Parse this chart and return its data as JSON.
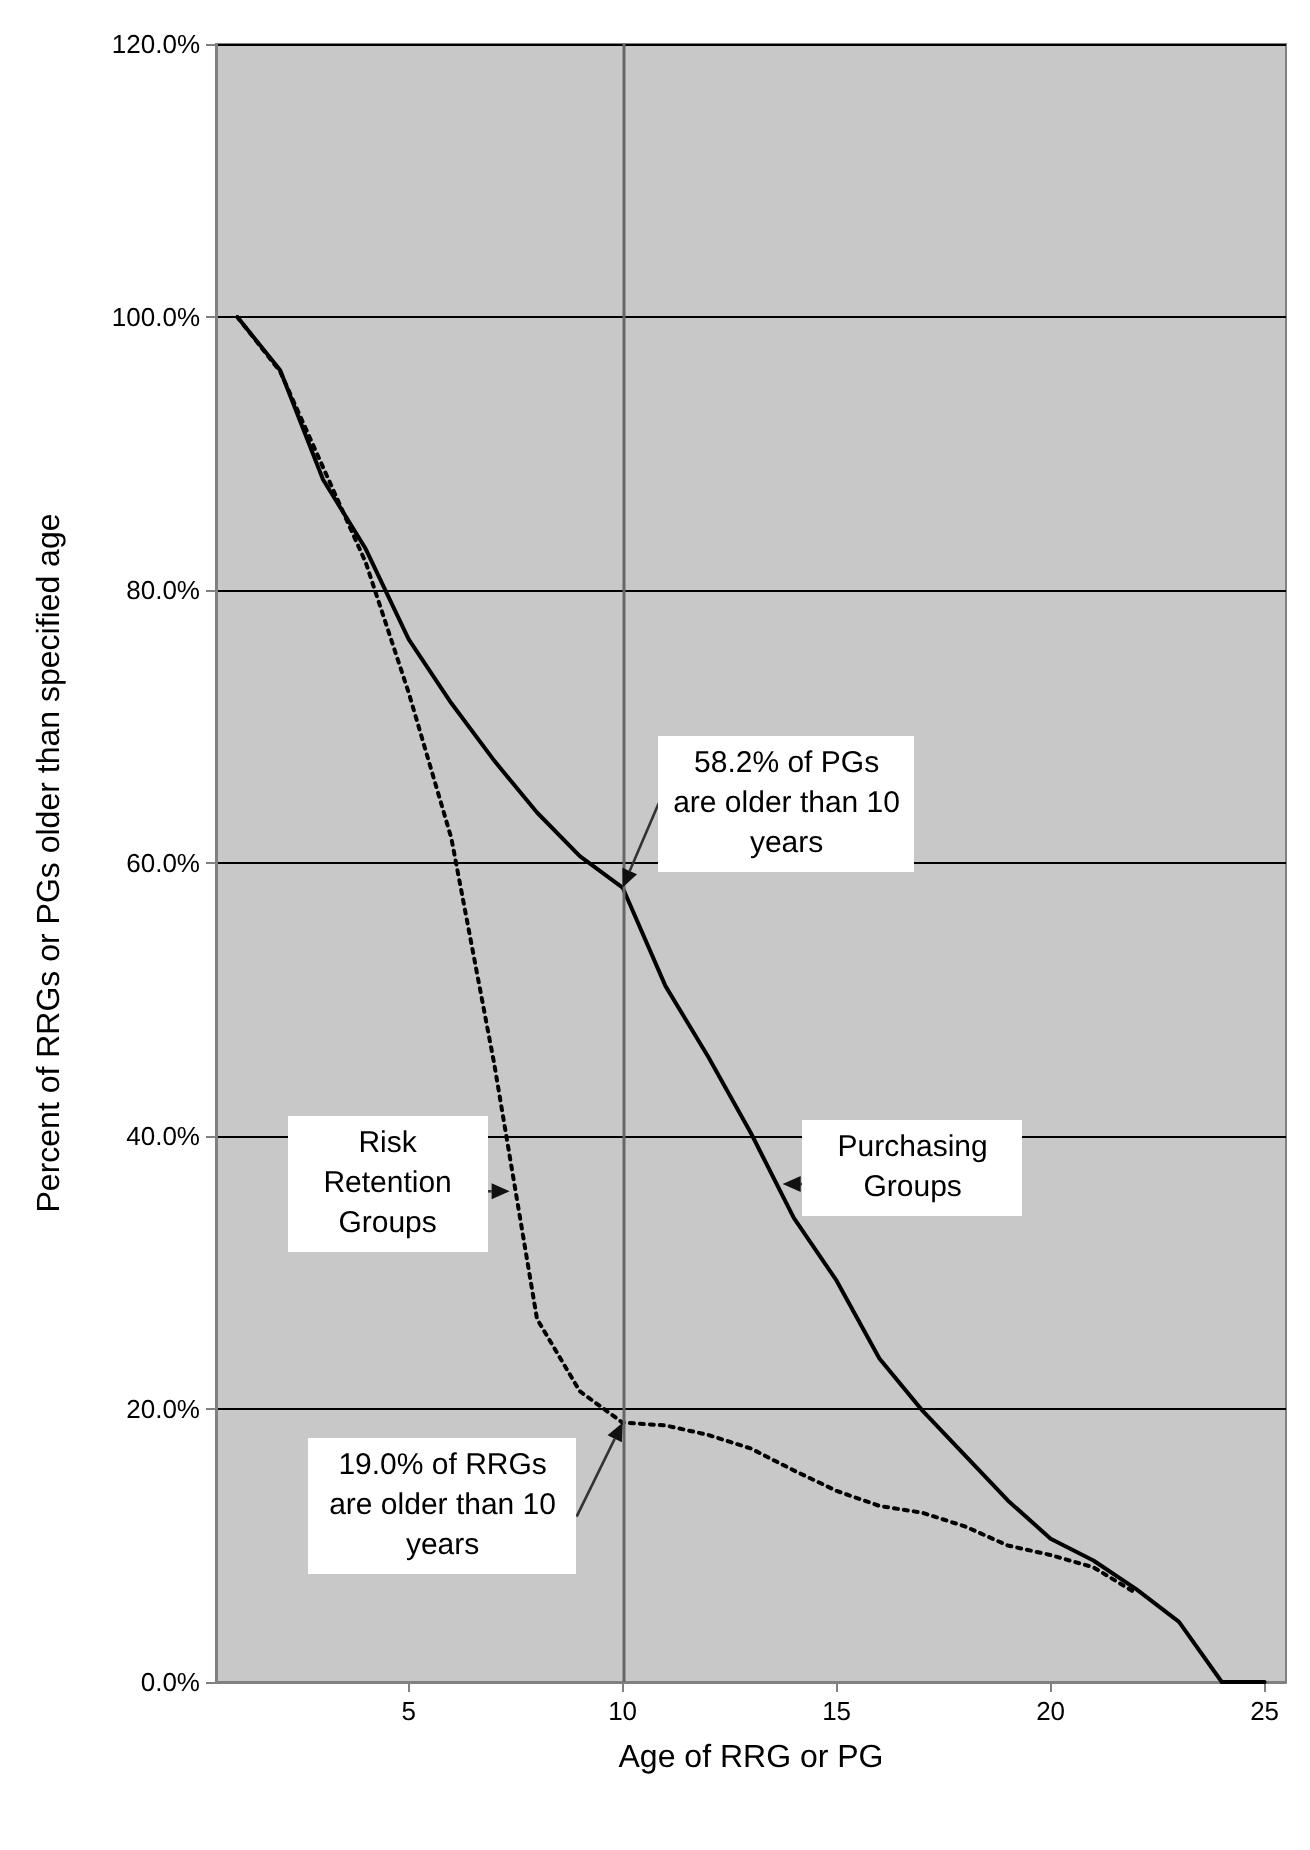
{
  "chart_data": {
    "type": "line",
    "xlabel": "Age of RRG or PG",
    "ylabel": "Percent of RRGs or PGs older than specified age",
    "x": [
      1,
      2,
      3,
      4,
      5,
      6,
      7,
      8,
      9,
      10,
      11,
      12,
      13,
      14,
      15,
      16,
      17,
      18,
      19,
      20,
      21,
      22,
      23,
      24,
      25
    ],
    "series": [
      {
        "name": "Risk Retention Groups",
        "color": "#000000",
        "line_style": "dotted",
        "values": [
          100,
          96,
          89,
          82,
          72.5,
          61.8,
          45.3,
          26.6,
          21.3,
          19.0,
          18.8,
          18.1,
          17.1,
          15.5,
          14.0,
          12.9,
          12.4,
          11.4,
          10.0,
          9.3,
          8.4,
          6.5,
          null,
          null,
          null
        ]
      },
      {
        "name": "Purchasing Groups",
        "color": "#000000",
        "line_style": "solid",
        "values": [
          100,
          96.1,
          88.1,
          83.0,
          76.4,
          71.7,
          67.5,
          63.7,
          60.5,
          58.2,
          51.0,
          45.8,
          40.2,
          34.0,
          29.4,
          23.7,
          19.9,
          16.6,
          13.3,
          10.5,
          8.9,
          6.8,
          4.4,
          0,
          0
        ]
      }
    ],
    "xlim": [
      0.5,
      25.5
    ],
    "xticks": [
      5,
      10,
      15,
      20,
      25
    ],
    "ylim": [
      0,
      120
    ],
    "yticks": [
      {
        "value": 0,
        "label": "0.0%"
      },
      {
        "value": 20,
        "label": "20.0%"
      },
      {
        "value": 40,
        "label": "40.0%"
      },
      {
        "value": 60,
        "label": "60.0%"
      },
      {
        "value": 80,
        "label": "80.0%"
      },
      {
        "value": 100,
        "label": "100.0%"
      },
      {
        "value": 120,
        "label": "120.0%"
      }
    ],
    "grid": "y",
    "legend": false,
    "marker": "none",
    "ref_lines": [
      {
        "axis": "x",
        "value": 10,
        "color": "#666666"
      }
    ],
    "annotations": [
      {
        "text": "58.2% of PGs are older than 10 years",
        "x": 10,
        "y": 58.2
      },
      {
        "text": "19.0% of RRGs are older than 10 years",
        "x": 10,
        "y": 19.0
      }
    ]
  }
}
